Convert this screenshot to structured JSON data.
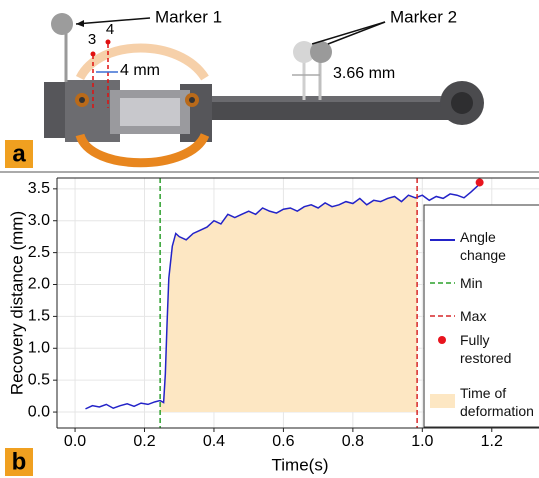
{
  "panel_a": {
    "label": "a",
    "marker_1": "Marker 1",
    "marker_2": "Marker 2",
    "point_3": "3",
    "point_4": "4",
    "gap_1": "4 mm",
    "gap_2": "3.66 mm"
  },
  "panel_b": {
    "label": "b"
  },
  "chart_data": {
    "type": "line",
    "xlabel": "Time(s)",
    "ylabel": "Recovery distance (mm)",
    "x": [
      0.03,
      0.05,
      0.07,
      0.09,
      0.11,
      0.13,
      0.15,
      0.17,
      0.19,
      0.21,
      0.23,
      0.245,
      0.255,
      0.26,
      0.265,
      0.27,
      0.28,
      0.29,
      0.3,
      0.32,
      0.34,
      0.36,
      0.38,
      0.4,
      0.42,
      0.44,
      0.46,
      0.48,
      0.5,
      0.52,
      0.54,
      0.56,
      0.58,
      0.6,
      0.62,
      0.64,
      0.66,
      0.68,
      0.7,
      0.72,
      0.74,
      0.76,
      0.78,
      0.8,
      0.82,
      0.84,
      0.86,
      0.88,
      0.9,
      0.92,
      0.94,
      0.96,
      0.98,
      1.0,
      1.02,
      1.04,
      1.06,
      1.08,
      1.1,
      1.12,
      1.14,
      1.16
    ],
    "series": [
      {
        "name": "Angle change",
        "color": "#2323c8",
        "values": [
          0.05,
          0.1,
          0.08,
          0.12,
          0.06,
          0.1,
          0.13,
          0.09,
          0.14,
          0.12,
          0.16,
          0.18,
          0.15,
          0.6,
          1.4,
          2.1,
          2.6,
          2.8,
          2.75,
          2.7,
          2.8,
          2.85,
          2.9,
          3.0,
          2.95,
          3.1,
          3.05,
          3.1,
          3.15,
          3.1,
          3.2,
          3.15,
          3.12,
          3.18,
          3.2,
          3.15,
          3.22,
          3.25,
          3.2,
          3.28,
          3.22,
          3.25,
          3.3,
          3.27,
          3.35,
          3.25,
          3.32,
          3.3,
          3.35,
          3.38,
          3.3,
          3.4,
          3.36,
          3.4,
          3.32,
          3.38,
          3.35,
          3.42,
          3.4,
          3.36,
          3.45,
          3.55
        ]
      }
    ],
    "vlines": [
      {
        "name": "Min",
        "color": "#2ca02c",
        "x": 0.245
      },
      {
        "name": "Max",
        "color": "#d62728",
        "x": 0.985
      }
    ],
    "points": [
      {
        "name": "Fully restored",
        "color": "#e8141e",
        "x": 1.165,
        "y": 3.6
      }
    ],
    "span": {
      "name": "Time of deformation",
      "color": "#fde7c3",
      "x": [
        0.245,
        0.985
      ]
    },
    "xlim": [
      -0.052,
      1.336
    ],
    "ylim": [
      -0.25,
      3.67
    ],
    "xticks": [
      {
        "value": 0,
        "label": "0.0"
      },
      0.2,
      0.4,
      0.6,
      0.8,
      {
        "value": 1,
        "label": "1.0"
      },
      1.2
    ],
    "yticks": [
      {
        "value": 0,
        "label": "0.0"
      },
      0.5,
      {
        "value": 1,
        "label": "1.0"
      },
      1.5,
      {
        "value": 2,
        "label": "2.0"
      },
      2.5,
      {
        "value": 3,
        "label": "3.0"
      },
      3.5
    ],
    "grid": true
  }
}
